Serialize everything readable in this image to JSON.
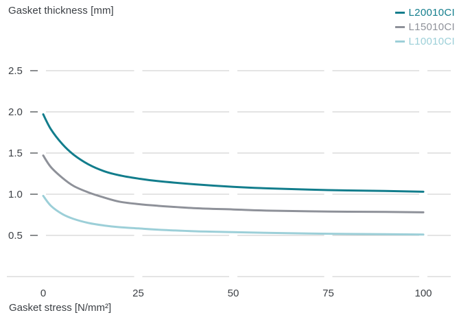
{
  "chart_data": {
    "type": "line",
    "ylabel": "Gasket thickness [mm]",
    "xlabel": "Gasket stress [N/mm²]",
    "xlim": [
      0,
      100
    ],
    "ylim": [
      0,
      2.5
    ],
    "xticks": [
      0,
      25,
      50,
      75,
      100
    ],
    "yticks": [
      0.5,
      1.0,
      1.5,
      2.0,
      2.5
    ],
    "xtick_labels": [
      "0",
      "25",
      "50",
      "75",
      "100"
    ],
    "ytick_labels": [
      "0.5",
      "1.0",
      "1.5",
      "2.0",
      "2.5"
    ],
    "grid": "horizontal dashed",
    "legend_position": "top-right",
    "series": [
      {
        "name": "L20010CI",
        "color": "#127d8c",
        "x": [
          0,
          2,
          5,
          8,
          12,
          16,
          20,
          25,
          30,
          40,
          50,
          60,
          75,
          90,
          100
        ],
        "y": [
          1.97,
          1.79,
          1.61,
          1.48,
          1.36,
          1.28,
          1.23,
          1.19,
          1.16,
          1.12,
          1.09,
          1.07,
          1.05,
          1.04,
          1.03
        ]
      },
      {
        "name": "L15010CI",
        "color": "#8e9199",
        "x": [
          0,
          2,
          5,
          8,
          12,
          16,
          20,
          25,
          30,
          40,
          50,
          60,
          75,
          90,
          100
        ],
        "y": [
          1.47,
          1.33,
          1.2,
          1.1,
          1.02,
          0.96,
          0.91,
          0.88,
          0.86,
          0.83,
          0.815,
          0.8,
          0.79,
          0.785,
          0.78
        ]
      },
      {
        "name": "L10010CI",
        "color": "#9ccfd8",
        "x": [
          0,
          2,
          5,
          8,
          12,
          16,
          20,
          25,
          30,
          40,
          50,
          60,
          75,
          90,
          100
        ],
        "y": [
          0.98,
          0.86,
          0.76,
          0.7,
          0.65,
          0.62,
          0.6,
          0.585,
          0.57,
          0.55,
          0.54,
          0.53,
          0.52,
          0.515,
          0.51
        ]
      }
    ]
  }
}
